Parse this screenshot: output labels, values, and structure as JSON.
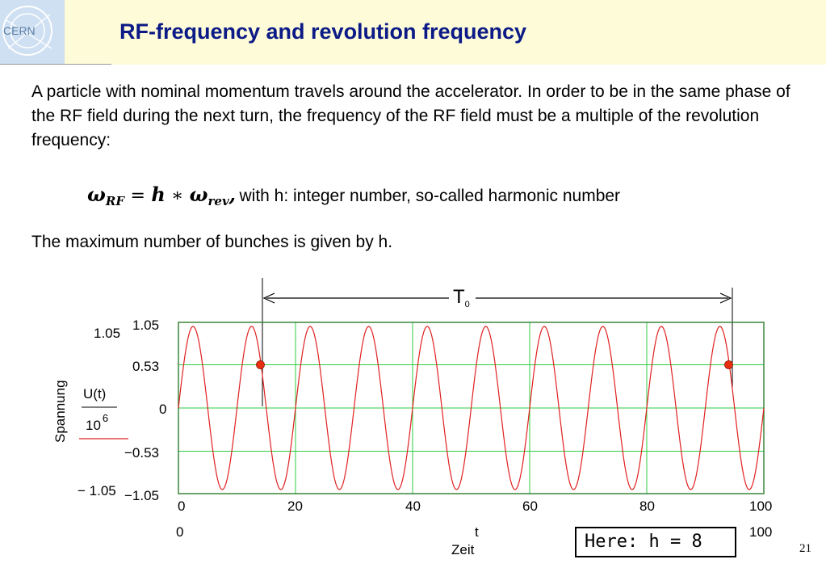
{
  "slide": {
    "title": "RF-frequency and revolution frequency",
    "logo_text": "CERN",
    "intro": "A particle with nominal momentum travels around the accelerator. In order to be in the same phase of the RF field during the next turn, the frequency of the RF field must be a multiple of the revolution frequency:",
    "formula": {
      "omega_rf": "ω",
      "rf_sub": "RF",
      "equals": "=",
      "h": "h",
      "times": "∗",
      "omega_rev": "ω",
      "rev_sub": "rev",
      "comma": ",",
      "description": "with h: integer number, so-called harmonic number"
    },
    "bunches_text": "The maximum number of bunches is given by h.",
    "harmonic_note": "Here: h = 8",
    "page_number": "21"
  },
  "chart_data": {
    "type": "line",
    "y_axis_title": "Spannung",
    "y_expr_num": "U(t)",
    "y_expr_den_base": "10",
    "y_expr_den_exp": "6",
    "y_outer_top": "1.05",
    "y_outer_bottom": "− 1.05",
    "y_ticks": [
      "1.05",
      "0.53",
      "0",
      "−0.53",
      "−1.05"
    ],
    "x_ticks": [
      "0",
      "20",
      "40",
      "60",
      "80",
      "100"
    ],
    "x_outer_left": "0",
    "x_outer_right": "100",
    "x_var": "t",
    "x_axis_title": "Zeit",
    "xlim": [
      0,
      100
    ],
    "ylim": [
      -1.05,
      1.05
    ],
    "grid": true,
    "series": [
      {
        "function": "sin",
        "amplitude": 1.0,
        "period": 10,
        "phase_deg": 0,
        "color": "#e02020"
      }
    ],
    "period_label": "T",
    "period_label_sub": "0",
    "markers": [
      {
        "x": 14.0,
        "y": 0.53,
        "color": "#e83010"
      },
      {
        "x": 94.0,
        "y": 0.53,
        "color": "#e83010"
      }
    ],
    "grid_color": "#2ecc40",
    "frame_color": "#2e7d2e"
  }
}
